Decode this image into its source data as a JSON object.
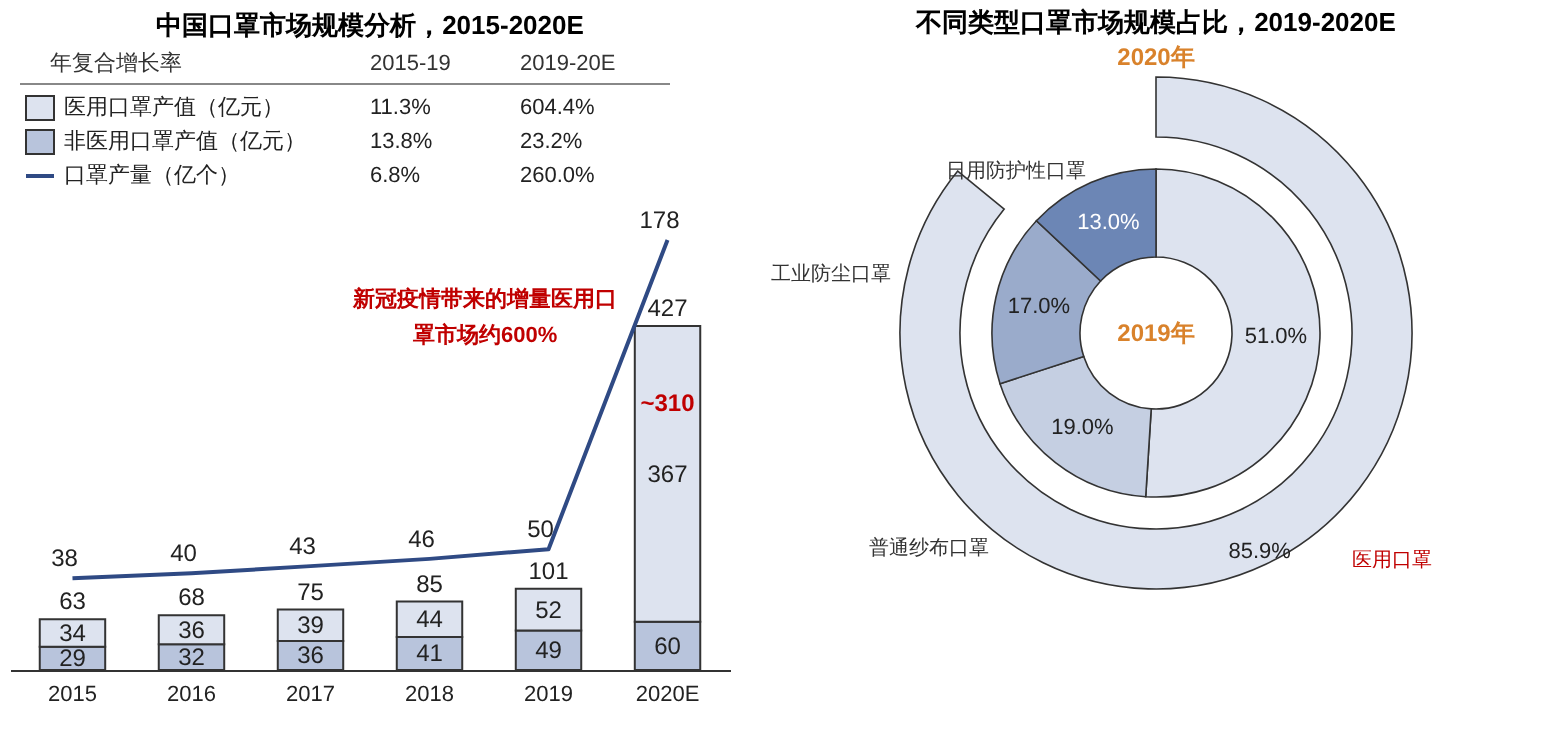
{
  "chart_data": [
    {
      "type": "bar",
      "title": "中国口罩市场规模分析，2015-2020E",
      "categories": [
        "2015",
        "2016",
        "2017",
        "2018",
        "2019",
        "2020E"
      ],
      "stacked": true,
      "data_labels": true,
      "legend": "top left",
      "series": [
        {
          "name": "非医用口罩产值（亿元）",
          "color": "#b8c4dc",
          "values": [
            29,
            32,
            36,
            41,
            49,
            60
          ]
        },
        {
          "name": "医用口罩产值（亿元）",
          "color": "#dde3ef",
          "values": [
            34,
            36,
            39,
            44,
            52,
            367
          ]
        },
        {
          "name": "口罩产量（亿个）",
          "type": "line",
          "axis": "y2",
          "color": "#2f4a84",
          "values": [
            38,
            40,
            43,
            46,
            50,
            178
          ]
        }
      ],
      "totals": [
        "63",
        "68",
        "75",
        "85",
        "101",
        "427"
      ],
      "annotations": [
        "年复合增长率",
        "2015-19",
        "2019-20E",
        "11.3%",
        "604.4%",
        "13.8%",
        "23.2%",
        "6.8%",
        "260.0%",
        "新冠疫情带来的增量医用口",
        "罩市场约600%",
        "~310"
      ]
    },
    {
      "type": "donut",
      "title": "不同类型口罩市场规模占比，2019-2020E",
      "categories": [
        "医用口罩",
        "普通纱布口罩",
        "工业防尘口罩",
        "日用防护性口罩"
      ],
      "colors": [
        "#dde3ef",
        "#c5cfe2",
        "#9aabcb",
        "#6c86b5"
      ],
      "series": [
        {
          "name": "2019年",
          "values": [
            51.0,
            19.0,
            17.0,
            13.0
          ],
          "value_labels": [
            "51.0%",
            "19.0%",
            "17.0%",
            "13.0%"
          ]
        },
        {
          "name": "2020年",
          "values": [
            85.9,
            null,
            null,
            null
          ],
          "value_labels": [
            "85.9%",
            null,
            null,
            null
          ]
        }
      ]
    }
  ]
}
